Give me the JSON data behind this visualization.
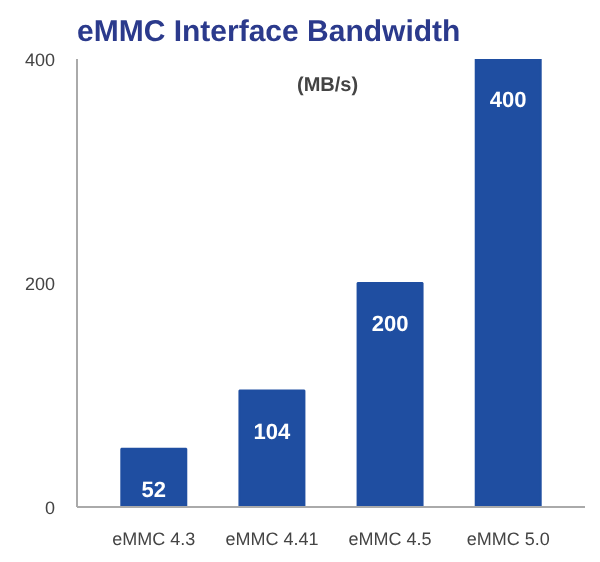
{
  "chart_data": {
    "type": "bar",
    "title": "eMMC Interface Bandwidth",
    "categories": [
      "eMMC 4.3",
      "eMMC 4.41",
      "eMMC 4.5",
      "eMMC 5.0"
    ],
    "values": [
      52,
      104,
      200,
      400
    ],
    "color": "#1f4ea1",
    "ylim": [
      0,
      400
    ],
    "yticks": [
      0,
      200,
      400
    ],
    "grid": false,
    "data_labels": true,
    "annotations": [
      "(MB/s)"
    ]
  }
}
